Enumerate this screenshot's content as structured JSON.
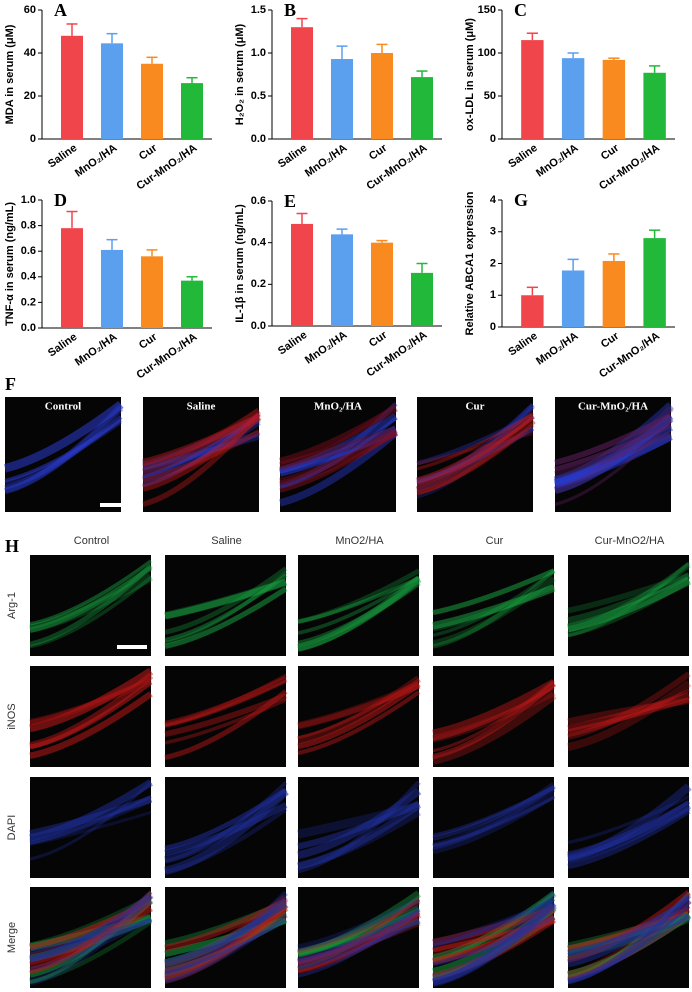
{
  "chart_data": [
    {
      "type": "bar",
      "panel": "A",
      "ylabel": "MDA in serum (μM)",
      "categories": [
        "Saline",
        "MnO₂/HA",
        "Cur",
        "Cur-MnO₂/HA"
      ],
      "values": [
        48,
        44.5,
        35,
        26
      ],
      "errors": [
        5.5,
        4.5,
        3,
        2.5
      ],
      "colors": [
        "#f0454a",
        "#5aa0ef",
        "#f88a1f",
        "#22b83a"
      ],
      "ylim": [
        0,
        60
      ],
      "yticks": [
        0,
        20,
        40,
        60
      ]
    },
    {
      "type": "bar",
      "panel": "B",
      "ylabel": "H₂O₂ in serum (μM)",
      "categories": [
        "Saline",
        "MnO₂/HA",
        "Cur",
        "Cur-MnO₂/HA"
      ],
      "values": [
        1.3,
        0.93,
        1.0,
        0.72
      ],
      "errors": [
        0.1,
        0.15,
        0.1,
        0.07
      ],
      "colors": [
        "#f0454a",
        "#5aa0ef",
        "#f88a1f",
        "#22b83a"
      ],
      "ylim": [
        0,
        1.5
      ],
      "yticks": [
        {
          "value": 0,
          "label": "0.0"
        },
        0.5,
        {
          "value": 1,
          "label": "1.0"
        },
        1.5
      ]
    },
    {
      "type": "bar",
      "panel": "C",
      "ylabel": "ox-LDL in serum (μM)",
      "categories": [
        "Saline",
        "MnO₂/HA",
        "Cur",
        "Cur-MnO₂/HA"
      ],
      "values": [
        115,
        94,
        92,
        77
      ],
      "errors": [
        8,
        6,
        2,
        8
      ],
      "colors": [
        "#f0454a",
        "#5aa0ef",
        "#f88a1f",
        "#22b83a"
      ],
      "ylim": [
        0,
        150
      ],
      "yticks": [
        0,
        50,
        100,
        150
      ]
    },
    {
      "type": "bar",
      "panel": "D",
      "ylabel": "TNF-α in serum (ng/mL)",
      "categories": [
        "Saline",
        "MnO₂/HA",
        "Cur",
        "Cur-MnO₂/HA"
      ],
      "values": [
        0.78,
        0.61,
        0.56,
        0.37
      ],
      "errors": [
        0.13,
        0.08,
        0.05,
        0.03
      ],
      "colors": [
        "#f0454a",
        "#5aa0ef",
        "#f88a1f",
        "#22b83a"
      ],
      "ylim": [
        0,
        1
      ],
      "yticks": [
        {
          "value": 0,
          "label": "0.0"
        },
        0.2,
        0.4,
        0.6,
        0.8,
        {
          "value": 1,
          "label": "1.0"
        }
      ]
    },
    {
      "type": "bar",
      "panel": "E",
      "ylabel": "IL-1β in serum (ng/mL)",
      "categories": [
        "Saline",
        "MnO₂/HA",
        "Cur",
        "Cur-MnO₂/HA"
      ],
      "values": [
        0.49,
        0.44,
        0.4,
        0.255
      ],
      "errors": [
        0.05,
        0.025,
        0.01,
        0.045
      ],
      "colors": [
        "#f0454a",
        "#5aa0ef",
        "#f88a1f",
        "#22b83a"
      ],
      "ylim": [
        0,
        0.6
      ],
      "yticks": [
        {
          "value": 0,
          "label": "0.0"
        },
        0.2,
        0.4,
        0.6
      ]
    },
    {
      "type": "bar",
      "panel": "G",
      "ylabel": "Relative ABCA1 expression",
      "categories": [
        "Saline",
        "MnO₂/HA",
        "Cur",
        "Cur-MnO₂/HA"
      ],
      "values": [
        1.0,
        1.78,
        2.08,
        2.8
      ],
      "errors": [
        0.25,
        0.35,
        0.22,
        0.25
      ],
      "colors": [
        "#f0454a",
        "#5aa0ef",
        "#f88a1f",
        "#22b83a"
      ],
      "ylim": [
        0,
        4
      ],
      "yticks": [
        0,
        1,
        2,
        3,
        4
      ]
    }
  ],
  "panel_f": {
    "panel": "F",
    "labels": [
      "Control",
      "Saline",
      "MnO₂/HA",
      "Cur",
      "Cur-MnO₂/HA"
    ]
  },
  "panel_h": {
    "panel": "H",
    "columns": [
      "Control",
      "Saline",
      "MnO2/HA",
      "Cur",
      "Cur-MnO2/HA"
    ],
    "rows": [
      "Arg-1",
      "iNOS",
      "DAPI",
      "Merge"
    ]
  }
}
